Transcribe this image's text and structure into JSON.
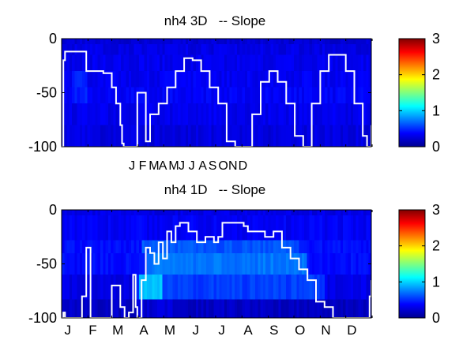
{
  "chart_data": [
    {
      "type": "heatmap",
      "title": "nh4 3D   -- Slope",
      "xlabel": "",
      "ylabel": "",
      "xlim": [
        1,
        365
      ],
      "ylim": [
        -100,
        0
      ],
      "yticks": [
        0,
        -50,
        -100
      ],
      "month_tick_labels": [
        "J",
        "F",
        "M",
        "A",
        "M",
        "J",
        "J",
        "A",
        "S",
        "O",
        "N",
        "D"
      ],
      "month_label_style": "compact",
      "color_scale": {
        "clim": [
          0,
          3
        ],
        "ticks": [
          0,
          1,
          2,
          3
        ],
        "colormap": "jet"
      },
      "depth_bands": [
        {
          "from": 0,
          "to": -5,
          "slope": 0.25
        },
        {
          "from": -5,
          "to": -15,
          "slope": 0.3
        },
        {
          "from": -15,
          "to": -30,
          "slope": 0.32
        },
        {
          "from": -30,
          "to": -45,
          "slope": 0.34
        },
        {
          "from": -45,
          "to": -60,
          "slope": 0.36
        },
        {
          "from": -60,
          "to": -80,
          "slope": 0.32
        },
        {
          "from": -80,
          "to": -100,
          "slope": 0.28
        }
      ],
      "highlight_patches": [
        {
          "x_from": 12,
          "x_to": 30,
          "y_from": -25,
          "y_to": -60,
          "slope": 0.45
        }
      ],
      "mixed_layer_depth": {
        "color": "#ffffff",
        "x": [
          1,
          3,
          5,
          15,
          25,
          30,
          40,
          50,
          60,
          65,
          70,
          72,
          74,
          80,
          90,
          100,
          105,
          115,
          125,
          135,
          145,
          155,
          165,
          175,
          185,
          195,
          205,
          215,
          225,
          235,
          245,
          255,
          265,
          275,
          285,
          295,
          305,
          315,
          325,
          335,
          345,
          355,
          360,
          362,
          365
        ],
        "depth": [
          -100,
          -20,
          -12,
          -12,
          -12,
          -30,
          -30,
          -32,
          -45,
          -60,
          -80,
          -97,
          -100,
          -100,
          -50,
          -95,
          -70,
          -60,
          -45,
          -30,
          -18,
          -20,
          -30,
          -45,
          -60,
          -95,
          -100,
          -100,
          -70,
          -40,
          -30,
          -40,
          -60,
          -90,
          -100,
          -60,
          -30,
          -15,
          -15,
          -30,
          -60,
          -90,
          -100,
          -100,
          -80
        ]
      }
    },
    {
      "type": "heatmap",
      "title": "nh4 1D   -- Slope",
      "xlabel": "",
      "ylabel": "",
      "xlim": [
        1,
        365
      ],
      "ylim": [
        -100,
        0
      ],
      "yticks": [
        0,
        -50,
        -100
      ],
      "month_tick_labels": [
        "J",
        "F",
        "M",
        "A",
        "M",
        "J",
        "J",
        "A",
        "S",
        "O",
        "N",
        "D"
      ],
      "month_label_style": "spaced",
      "color_scale": {
        "clim": [
          0,
          3
        ],
        "ticks": [
          0,
          1,
          2,
          3
        ],
        "colormap": "jet"
      },
      "depth_bands": [
        {
          "from": 0,
          "to": -5,
          "slope": 0.3
        },
        {
          "from": -5,
          "to": -28,
          "slope": 0.35
        },
        {
          "from": -28,
          "to": -40,
          "slope": 0.4
        },
        {
          "from": -40,
          "to": -60,
          "slope": 0.4
        },
        {
          "from": -60,
          "to": -83,
          "slope": 0.3
        },
        {
          "from": -83,
          "to": -100,
          "slope": 0.2
        }
      ],
      "highlight_patches": [
        {
          "x_from": 95,
          "x_to": 280,
          "y_from": -28,
          "y_to": -42,
          "slope": 0.62
        },
        {
          "x_from": 100,
          "x_to": 290,
          "y_from": -42,
          "y_to": -58,
          "slope": 0.72
        },
        {
          "x_from": 90,
          "x_to": 310,
          "y_from": -58,
          "y_to": -82,
          "slope": 0.55
        },
        {
          "x_from": 92,
          "x_to": 120,
          "y_from": -58,
          "y_to": -82,
          "slope": 0.95
        },
        {
          "x_from": 88,
          "x_to": 140,
          "y_from": -82,
          "y_to": -98,
          "slope": 0.25
        }
      ],
      "mixed_layer_depth": {
        "color": "#ffffff",
        "x": [
          1,
          3,
          5,
          20,
          25,
          30,
          35,
          40,
          45,
          50,
          60,
          65,
          70,
          75,
          80,
          85,
          88,
          90,
          95,
          100,
          105,
          110,
          115,
          120,
          125,
          130,
          135,
          140,
          145,
          150,
          160,
          170,
          180,
          185,
          190,
          200,
          210,
          215,
          220,
          240,
          250,
          260,
          270,
          280,
          290,
          300,
          310,
          320,
          330,
          340,
          350,
          360,
          363,
          365
        ],
        "depth": [
          -100,
          -95,
          -100,
          -100,
          -80,
          -35,
          -100,
          -100,
          -100,
          -100,
          -70,
          -70,
          -90,
          -100,
          -95,
          -60,
          -90,
          -100,
          -65,
          -35,
          -40,
          -50,
          -30,
          -45,
          -20,
          -30,
          -15,
          -12,
          -12,
          -20,
          -30,
          -25,
          -30,
          -25,
          -12,
          -12,
          -12,
          -15,
          -20,
          -25,
          -20,
          -35,
          -45,
          -55,
          -65,
          -85,
          -90,
          -100,
          -100,
          -100,
          -100,
          -100,
          -80,
          -65
        ]
      }
    }
  ]
}
